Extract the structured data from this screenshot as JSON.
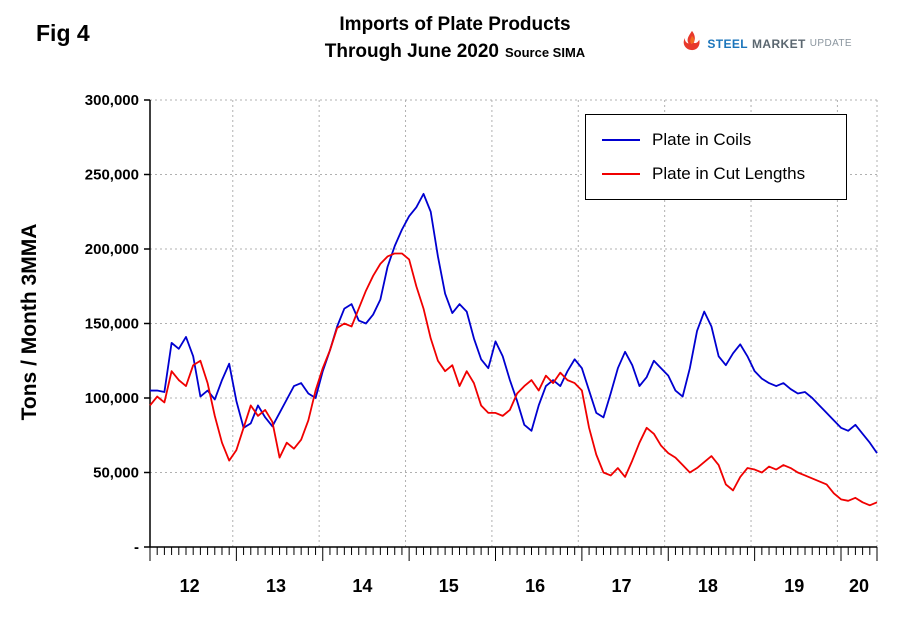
{
  "header": {
    "fig_label": "Fig 4",
    "title_line1": "Imports of Plate Products",
    "title_line2": "Through June 2020",
    "source": "Source SIMA"
  },
  "logo": {
    "steel": "STEEL",
    "market": "MARKET",
    "update": "UPDATE"
  },
  "y_axis_title": "Tons / Month 3MMA",
  "legend": {
    "items": [
      {
        "label": "Plate in Coils"
      },
      {
        "label": "Plate in Cut Lengths"
      }
    ]
  },
  "chart_data": {
    "type": "line",
    "title": "Imports of Plate Products Through June 2020",
    "source": "SIMA",
    "ylabel": "Tons / Month 3MMA",
    "ylim": [
      0,
      300000
    ],
    "y_tick_step": 50000,
    "y_tick_labels": [
      "-",
      "50,000",
      "100,000",
      "150,000",
      "200,000",
      "250,000",
      "300,000"
    ],
    "x_unit": "month",
    "x_start": "2012-01",
    "x_end": "2020-06",
    "x_tick_labels": [
      "12",
      "13",
      "14",
      "15",
      "16",
      "17",
      "18",
      "19",
      "20"
    ],
    "grid": true,
    "legend_position": "top-right",
    "series": [
      {
        "name": "Plate in Coils",
        "color": "#0000D0",
        "values": [
          105000,
          105000,
          104000,
          137000,
          133000,
          141000,
          128000,
          101000,
          105000,
          99000,
          112000,
          123000,
          98000,
          80000,
          83000,
          95000,
          87000,
          81000,
          90000,
          99000,
          108000,
          110000,
          103000,
          100000,
          118000,
          132000,
          148000,
          160000,
          163000,
          152000,
          150000,
          156000,
          166000,
          188000,
          202000,
          213000,
          222000,
          228000,
          237000,
          225000,
          195000,
          170000,
          157000,
          163000,
          158000,
          140000,
          126000,
          120000,
          138000,
          128000,
          112000,
          98000,
          82000,
          78000,
          95000,
          108000,
          112000,
          108000,
          118000,
          126000,
          120000,
          105000,
          90000,
          87000,
          103000,
          120000,
          131000,
          122000,
          108000,
          114000,
          125000,
          120000,
          115000,
          105000,
          101000,
          120000,
          145000,
          158000,
          148000,
          128000,
          122000,
          130000,
          136000,
          128000,
          118000,
          113000,
          110000,
          108000,
          110000,
          106000,
          103000,
          104000,
          100000,
          95000,
          90000,
          85000,
          80000,
          78000,
          82000,
          76000,
          70000,
          63000
        ]
      },
      {
        "name": "Plate in Cut Lengths",
        "color": "#F00000",
        "values": [
          95000,
          101000,
          97000,
          118000,
          112000,
          108000,
          122000,
          125000,
          110000,
          88000,
          70000,
          58000,
          65000,
          80000,
          95000,
          88000,
          92000,
          84000,
          60000,
          70000,
          66000,
          72000,
          85000,
          105000,
          120000,
          132000,
          147000,
          150000,
          148000,
          160000,
          172000,
          182000,
          190000,
          195000,
          197000,
          197000,
          193000,
          175000,
          160000,
          140000,
          125000,
          118000,
          122000,
          108000,
          118000,
          110000,
          95000,
          90000,
          90000,
          88000,
          92000,
          103000,
          108000,
          112000,
          105000,
          115000,
          110000,
          117000,
          112000,
          110000,
          105000,
          80000,
          62000,
          50000,
          48000,
          53000,
          47000,
          58000,
          70000,
          80000,
          76000,
          68000,
          63000,
          60000,
          55000,
          50000,
          53000,
          57000,
          61000,
          55000,
          42000,
          38000,
          47000,
          53000,
          52000,
          50000,
          54000,
          52000,
          55000,
          53000,
          50000,
          48000,
          46000,
          44000,
          42000,
          36000,
          32000,
          31000,
          33000,
          30000,
          28000,
          30000
        ]
      }
    ]
  }
}
